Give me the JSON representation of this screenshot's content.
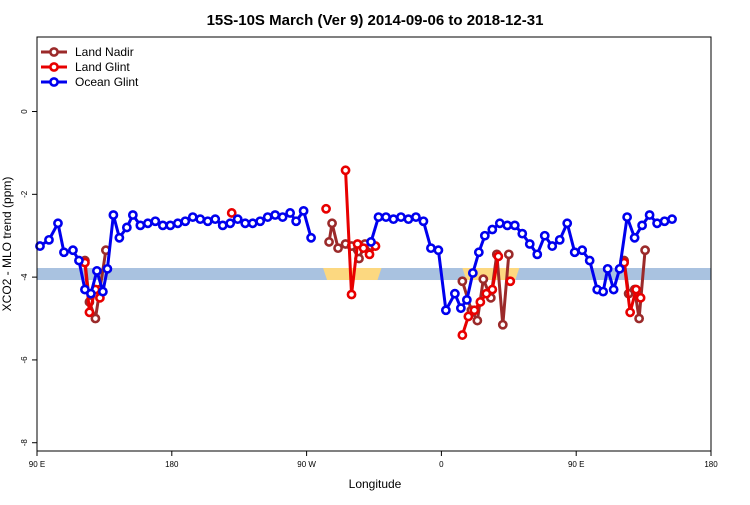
{
  "chart_data": {
    "type": "line",
    "title": "15S-10S March (Ver 9)   2014-09-06 to 2018-12-31",
    "xlabel": "Longitude",
    "ylabel": "XCO2 - MLO trend (ppm)",
    "xlim": [
      90,
      540
    ],
    "ylim": [
      -8.2,
      1.8
    ],
    "x_ticks": [
      {
        "value": 90,
        "label": "90 E"
      },
      {
        "value": 180,
        "label": "180"
      },
      {
        "value": 270,
        "label": "90 W"
      },
      {
        "value": 360,
        "label": "0"
      },
      {
        "value": 450,
        "label": "90 E"
      },
      {
        "value": 540,
        "label": "180"
      }
    ],
    "y_ticks": [
      {
        "value": 0,
        "label": "0"
      },
      {
        "value": -2,
        "label": "-2"
      },
      {
        "value": -4,
        "label": "-4"
      },
      {
        "value": -6,
        "label": "-6"
      },
      {
        "value": -8,
        "label": "-8"
      }
    ],
    "legend_position": "top-left",
    "grid": false,
    "land_band": {
      "y_range": [
        -4.07,
        -3.78
      ],
      "ocean_color": "#a9c2e0",
      "land_color": "#fcd880",
      "land_segments": [
        [
          281,
          320
        ],
        [
          374,
          412
        ]
      ]
    },
    "series": [
      {
        "name": "Land Nadir",
        "color": "#9b2a2a",
        "segments": [
          [
            [
              122,
              -3.6
            ],
            [
              125,
              -4.6
            ],
            [
              129,
              -5.0
            ],
            [
              132,
              -4.3
            ],
            [
              136,
              -3.35
            ]
          ],
          [
            [
              285,
              -3.15
            ],
            [
              287,
              -2.7
            ],
            [
              291,
              -3.3
            ],
            [
              296,
              -3.2
            ],
            [
              300,
              -3.25
            ],
            [
              305,
              -3.55
            ],
            [
              309,
              -3.2
            ],
            [
              313,
              -3.25
            ]
          ],
          [
            [
              374,
              -4.1
            ],
            [
              380,
              -4.8
            ],
            [
              384,
              -5.05
            ],
            [
              388,
              -4.05
            ],
            [
              393,
              -4.5
            ],
            [
              397,
              -3.45
            ],
            [
              401,
              -5.15
            ],
            [
              405,
              -3.45
            ]
          ],
          [
            [
              482,
              -3.6
            ],
            [
              485,
              -4.4
            ],
            [
              489,
              -4.3
            ],
            [
              492,
              -5.0
            ],
            [
              496,
              -3.35
            ]
          ]
        ]
      },
      {
        "name": "Land Glint",
        "color": "#e80000",
        "segments": [
          [
            [
              122,
              -3.65
            ],
            [
              125,
              -4.85
            ],
            [
              129,
              -4.3
            ],
            [
              132,
              -4.5
            ]
          ],
          [
            [
              220,
              -2.45
            ]
          ],
          [
            [
              283,
              -2.35
            ]
          ],
          [
            [
              296,
              -1.42
            ],
            [
              300,
              -4.42
            ],
            [
              304,
              -3.2
            ],
            [
              308,
              -3.3
            ],
            [
              312,
              -3.45
            ],
            [
              316,
              -3.25
            ]
          ],
          [
            [
              374,
              -5.4
            ],
            [
              378,
              -4.95
            ],
            [
              382,
              -4.8
            ],
            [
              386,
              -4.6
            ],
            [
              390,
              -4.4
            ],
            [
              394,
              -4.3
            ],
            [
              398,
              -3.5
            ]
          ],
          [
            [
              406,
              -4.1
            ]
          ],
          [
            [
              482,
              -3.65
            ],
            [
              486,
              -4.85
            ],
            [
              490,
              -4.3
            ],
            [
              493,
              -4.5
            ]
          ]
        ]
      },
      {
        "name": "Ocean Glint",
        "color": "#0000ee",
        "segments": [
          [
            [
              92,
              -3.25
            ],
            [
              98,
              -3.1
            ],
            [
              104,
              -2.7
            ],
            [
              108,
              -3.4
            ],
            [
              114,
              -3.35
            ],
            [
              118,
              -3.6
            ],
            [
              122,
              -4.3
            ],
            [
              126,
              -4.4
            ],
            [
              130,
              -3.85
            ],
            [
              134,
              -4.35
            ],
            [
              137,
              -3.8
            ],
            [
              141,
              -2.5
            ],
            [
              145,
              -3.05
            ],
            [
              150,
              -2.8
            ],
            [
              154,
              -2.5
            ],
            [
              159,
              -2.75
            ],
            [
              164,
              -2.7
            ],
            [
              169,
              -2.65
            ],
            [
              174,
              -2.75
            ],
            [
              179,
              -2.75
            ],
            [
              184,
              -2.7
            ],
            [
              189,
              -2.65
            ],
            [
              194,
              -2.55
            ],
            [
              199,
              -2.6
            ],
            [
              204,
              -2.65
            ],
            [
              209,
              -2.6
            ],
            [
              214,
              -2.75
            ],
            [
              219,
              -2.7
            ],
            [
              224,
              -2.6
            ],
            [
              229,
              -2.7
            ],
            [
              234,
              -2.7
            ],
            [
              239,
              -2.65
            ],
            [
              244,
              -2.55
            ],
            [
              249,
              -2.5
            ],
            [
              254,
              -2.55
            ],
            [
              259,
              -2.45
            ],
            [
              263,
              -2.65
            ],
            [
              268,
              -2.4
            ],
            [
              273,
              -3.05
            ]
          ],
          [
            [
              313,
              -3.15
            ],
            [
              318,
              -2.55
            ],
            [
              323,
              -2.55
            ],
            [
              328,
              -2.6
            ],
            [
              333,
              -2.55
            ],
            [
              338,
              -2.6
            ],
            [
              343,
              -2.55
            ],
            [
              348,
              -2.65
            ],
            [
              353,
              -3.3
            ],
            [
              358,
              -3.35
            ],
            [
              363,
              -4.8
            ],
            [
              369,
              -4.4
            ],
            [
              373,
              -4.75
            ],
            [
              377,
              -4.55
            ],
            [
              381,
              -3.9
            ],
            [
              385,
              -3.4
            ],
            [
              389,
              -3.0
            ],
            [
              394,
              -2.85
            ],
            [
              399,
              -2.7
            ],
            [
              404,
              -2.75
            ],
            [
              409,
              -2.75
            ],
            [
              414,
              -2.95
            ],
            [
              419,
              -3.2
            ],
            [
              424,
              -3.45
            ],
            [
              429,
              -3.0
            ],
            [
              434,
              -3.25
            ],
            [
              439,
              -3.1
            ],
            [
              444,
              -2.7
            ],
            [
              449,
              -3.4
            ],
            [
              454,
              -3.35
            ],
            [
              459,
              -3.6
            ],
            [
              464,
              -4.3
            ],
            [
              468,
              -4.35
            ],
            [
              471,
              -3.8
            ],
            [
              475,
              -4.3
            ],
            [
              479,
              -3.8
            ],
            [
              484,
              -2.55
            ],
            [
              489,
              -3.05
            ],
            [
              494,
              -2.75
            ],
            [
              499,
              -2.5
            ],
            [
              504,
              -2.7
            ],
            [
              509,
              -2.65
            ],
            [
              514,
              -2.6
            ]
          ]
        ]
      }
    ]
  }
}
